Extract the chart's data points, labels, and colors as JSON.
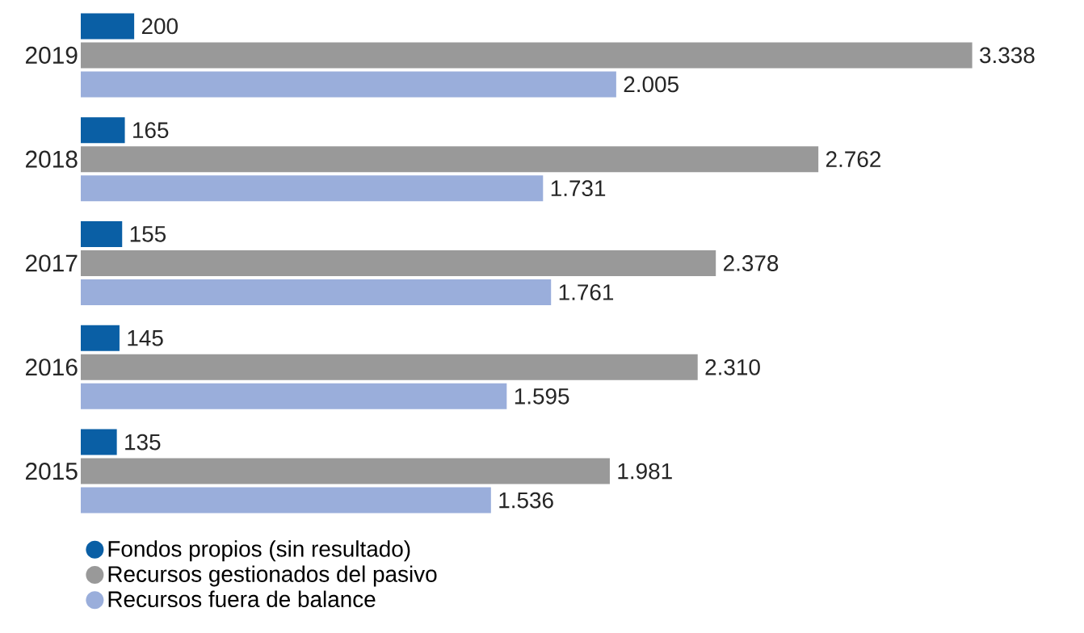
{
  "chart_data": {
    "type": "bar",
    "orientation": "horizontal",
    "categories": [
      "2019",
      "2018",
      "2017",
      "2016",
      "2015"
    ],
    "series": [
      {
        "name": "Fondos propios (sin resultado)",
        "color": "#0a5fa5",
        "values": [
          200,
          165,
          155,
          145,
          135
        ],
        "value_labels": [
          "200",
          "165",
          "155",
          "145",
          "135"
        ]
      },
      {
        "name": "Recursos gestionados del pasivo",
        "color": "#999999",
        "values": [
          3338,
          2762,
          2378,
          2310,
          1981
        ],
        "value_labels": [
          "3.338",
          "2.762",
          "2.378",
          "2.310",
          "1.981"
        ]
      },
      {
        "name": "Recursos fuera de balance",
        "color": "#9aaedb",
        "values": [
          2005,
          1731,
          1761,
          1595,
          1536
        ],
        "value_labels": [
          "2.005",
          "1.731",
          "1.761",
          "1.595",
          "1.536"
        ]
      }
    ],
    "legend": "bottom left"
  }
}
